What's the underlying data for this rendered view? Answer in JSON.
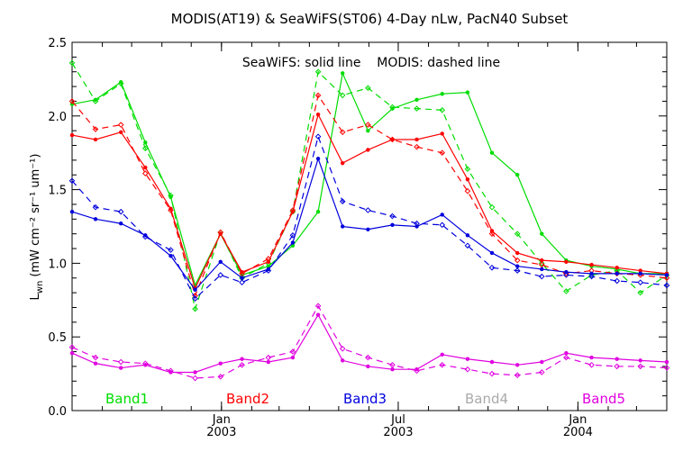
{
  "chart_data": {
    "type": "line",
    "title": "MODIS(AT19) & SeaWiFS(ST06) 4-Day nLw, PacN40 Subset",
    "annotation": "SeaWiFS: solid line    MODIS: dashed line",
    "ylabel": "L",
    "ylabel_sub": "wn",
    "ylabel_units": "(mW cm⁻² sr⁻¹ um⁻¹)",
    "xlim": [
      "2002-08-01",
      "2004-04-01"
    ],
    "ylim": [
      0.0,
      2.5
    ],
    "y_ticks": [
      {
        "value": 0.0,
        "label": "0.0"
      },
      {
        "value": 0.5,
        "label": "0.5"
      },
      {
        "value": 1.0,
        "label": "1.0"
      },
      {
        "value": 1.5,
        "label": "1.5"
      },
      {
        "value": 2.0,
        "label": "2.0"
      },
      {
        "value": 2.5,
        "label": "2.5"
      }
    ],
    "x_ticks": [
      {
        "date": "2003-01-01",
        "month": "Jan",
        "year": "2003"
      },
      {
        "date": "2003-07-01",
        "month": "Jul",
        "year": "2003"
      },
      {
        "date": "2004-01-01",
        "month": "Jan",
        "year": "2004"
      }
    ],
    "x": [
      "2002-08-01",
      "2002-08-25",
      "2002-09-20",
      "2002-10-15",
      "2002-11-10",
      "2002-12-05",
      "2002-12-31",
      "2003-01-22",
      "2003-02-18",
      "2003-03-15",
      "2003-04-10",
      "2003-05-05",
      "2003-05-31",
      "2003-06-25",
      "2003-07-20",
      "2003-08-15",
      "2003-09-10",
      "2003-10-05",
      "2003-10-31",
      "2003-11-25",
      "2003-12-20",
      "2004-01-15",
      "2004-02-10",
      "2004-03-05",
      "2004-04-01"
    ],
    "series": [
      {
        "name": "Band1",
        "color": "#00dd00",
        "seawifs": [
          2.08,
          2.11,
          2.23,
          1.82,
          1.45,
          0.85,
          1.2,
          0.92,
          0.98,
          1.12,
          1.35,
          2.29,
          1.9,
          2.05,
          2.11,
          2.15,
          2.16,
          1.75,
          1.6,
          1.2,
          1.02,
          0.98,
          0.96,
          0.93,
          0.93
        ],
        "modis": [
          2.36,
          2.1,
          2.22,
          1.78,
          1.46,
          0.69,
          1.21,
          0.9,
          1.0,
          1.35,
          2.3,
          2.14,
          2.19,
          2.06,
          2.05,
          2.04,
          1.64,
          1.38,
          1.2,
          1.0,
          0.81,
          0.92,
          0.95,
          0.8,
          0.92
        ]
      },
      {
        "name": "Band2",
        "color": "#ff0000",
        "seawifs": [
          1.87,
          1.84,
          1.89,
          1.65,
          1.37,
          0.83,
          1.2,
          0.94,
          1.01,
          1.35,
          2.01,
          1.68,
          1.77,
          1.84,
          1.84,
          1.88,
          1.57,
          1.22,
          1.07,
          1.02,
          1.01,
          0.99,
          0.97,
          0.95,
          0.93
        ],
        "modis": [
          2.1,
          1.91,
          1.94,
          1.61,
          1.36,
          0.78,
          1.21,
          0.93,
          1.03,
          1.36,
          2.14,
          1.89,
          1.94,
          1.84,
          1.79,
          1.75,
          1.49,
          1.2,
          1.02,
          0.99,
          0.93,
          0.95,
          0.93,
          0.92,
          0.9
        ]
      },
      {
        "name": "Band3",
        "color": "#0000dd",
        "seawifs": [
          1.35,
          1.3,
          1.27,
          1.19,
          1.05,
          0.82,
          1.01,
          0.9,
          0.96,
          1.14,
          1.71,
          1.25,
          1.23,
          1.26,
          1.25,
          1.33,
          1.19,
          1.07,
          0.98,
          0.96,
          0.94,
          0.93,
          0.93,
          0.93,
          0.92
        ],
        "modis": [
          1.56,
          1.38,
          1.35,
          1.18,
          1.09,
          0.76,
          0.92,
          0.87,
          0.95,
          1.19,
          1.86,
          1.42,
          1.36,
          1.32,
          1.27,
          1.26,
          1.12,
          0.97,
          0.95,
          0.91,
          0.92,
          0.91,
          0.88,
          0.87,
          0.85
        ]
      },
      {
        "name": "Band4",
        "color": "#aaaaaa",
        "seawifs": [],
        "modis": []
      },
      {
        "name": "Band5",
        "color": "#e000e0",
        "seawifs": [
          0.39,
          0.32,
          0.29,
          0.31,
          0.26,
          0.26,
          0.32,
          0.35,
          0.33,
          0.36,
          0.65,
          0.34,
          0.3,
          0.28,
          0.28,
          0.38,
          0.35,
          0.33,
          0.31,
          0.33,
          0.39,
          0.36,
          0.35,
          0.34,
          0.33
        ],
        "modis": [
          0.43,
          0.36,
          0.33,
          0.32,
          0.27,
          0.22,
          0.23,
          0.31,
          0.36,
          0.4,
          0.71,
          0.42,
          0.36,
          0.31,
          0.27,
          0.31,
          0.28,
          0.25,
          0.24,
          0.26,
          0.36,
          0.31,
          0.3,
          0.3,
          0.29
        ]
      }
    ]
  }
}
